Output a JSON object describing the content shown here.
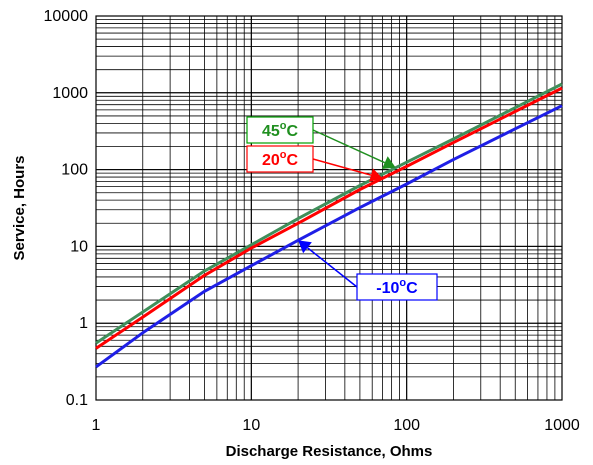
{
  "chart_data": {
    "type": "line",
    "title": "",
    "xlabel": "Discharge Resistance, Ohms",
    "ylabel": "Service, Hours",
    "x_scale": "log",
    "y_scale": "log",
    "xlim": [
      1,
      1000
    ],
    "ylim": [
      0.1,
      10000
    ],
    "x_ticks": [
      "1",
      "10",
      "100",
      "1000"
    ],
    "y_ticks": [
      "0.1",
      "1",
      "10",
      "100",
      "1000",
      "10000"
    ],
    "grid": true,
    "legend": "none",
    "series": [
      {
        "name": "45°C",
        "color": "#3f8f5a",
        "x": [
          1,
          2,
          5,
          10,
          20,
          50,
          100,
          200,
          500,
          1000
        ],
        "y": [
          0.55,
          1.4,
          4.8,
          10.5,
          23,
          62,
          125,
          250,
          640,
          1300
        ]
      },
      {
        "name": "20°C",
        "color": "#ff0000",
        "x": [
          1,
          2,
          5,
          10,
          20,
          50,
          100,
          200,
          500,
          1000
        ],
        "y": [
          0.47,
          1.2,
          4.2,
          9.5,
          20,
          55,
          110,
          225,
          570,
          1150
        ]
      },
      {
        "name": "-10°C",
        "color": "#1f1fe6",
        "x": [
          1,
          2,
          5,
          10,
          20,
          50,
          100,
          200,
          500,
          1000
        ],
        "y": [
          0.27,
          0.75,
          2.6,
          5.6,
          12,
          32,
          65,
          135,
          340,
          680
        ]
      }
    ],
    "annotations": [
      {
        "label": "45",
        "sup": "o",
        "unit": "C",
        "color": "#1f8f1f",
        "border": "#00a000",
        "target_series": 0,
        "target_x": 85
      },
      {
        "label": "20",
        "sup": "o",
        "unit": "C",
        "color": "#ff0000",
        "border": "#ff0000",
        "target_series": 1,
        "target_x": 70
      },
      {
        "label": "-10",
        "sup": "o",
        "unit": "C",
        "color": "#0000ff",
        "border": "#0000ff",
        "target_series": 2,
        "target_x": 20
      }
    ]
  }
}
